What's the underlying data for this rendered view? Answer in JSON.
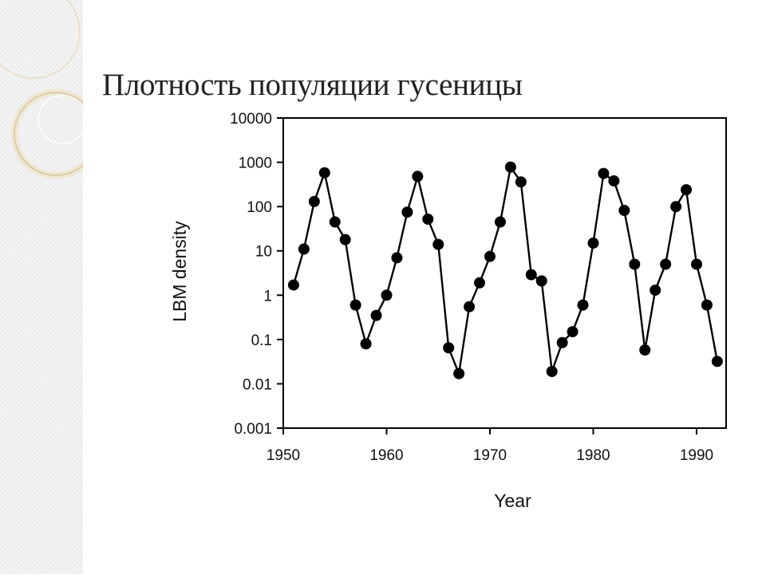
{
  "slide": {
    "title": "Плотность популяции гусеницы"
  },
  "chart_data": {
    "type": "line",
    "title": "",
    "xlabel": "Year",
    "ylabel": "LBM density",
    "xlim": [
      1950,
      1993
    ],
    "ylim": [
      0.001,
      10000
    ],
    "yscale": "log",
    "grid": false,
    "legend": "none",
    "x_ticks": [
      1950,
      1960,
      1970,
      1980,
      1990
    ],
    "y_ticks": [
      0.001,
      0.01,
      0.1,
      1,
      10,
      100,
      1000,
      10000
    ],
    "y_tick_labels": [
      "0.001",
      "0.01",
      "0.1",
      "1",
      "10",
      "100",
      "1000",
      "10000"
    ],
    "series": [
      {
        "x": [
          1951,
          1952,
          1953,
          1954,
          1955,
          1956,
          1957,
          1958,
          1959,
          1960,
          1961,
          1962,
          1963,
          1964,
          1965,
          1966,
          1967,
          1968,
          1969,
          1970,
          1971,
          1972,
          1973,
          1974,
          1975,
          1976,
          1977,
          1978,
          1979,
          1980,
          1981,
          1982,
          1983,
          1984,
          1985,
          1986,
          1987,
          1988,
          1989,
          1990,
          1991,
          1992
        ],
        "y": [
          1.7,
          11,
          130,
          580,
          45,
          18,
          0.6,
          0.08,
          0.35,
          1.0,
          7,
          75,
          480,
          52,
          14,
          0.065,
          0.017,
          0.55,
          1.9,
          7.5,
          45,
          780,
          360,
          2.9,
          2.1,
          0.019,
          0.085,
          0.15,
          0.6,
          15,
          560,
          380,
          82,
          5,
          0.058,
          1.3,
          5,
          100,
          240,
          5,
          0.6,
          0.032
        ]
      }
    ],
    "colors": {
      "line": "#000000",
      "marker": "#000000",
      "axis": "#000000"
    }
  }
}
